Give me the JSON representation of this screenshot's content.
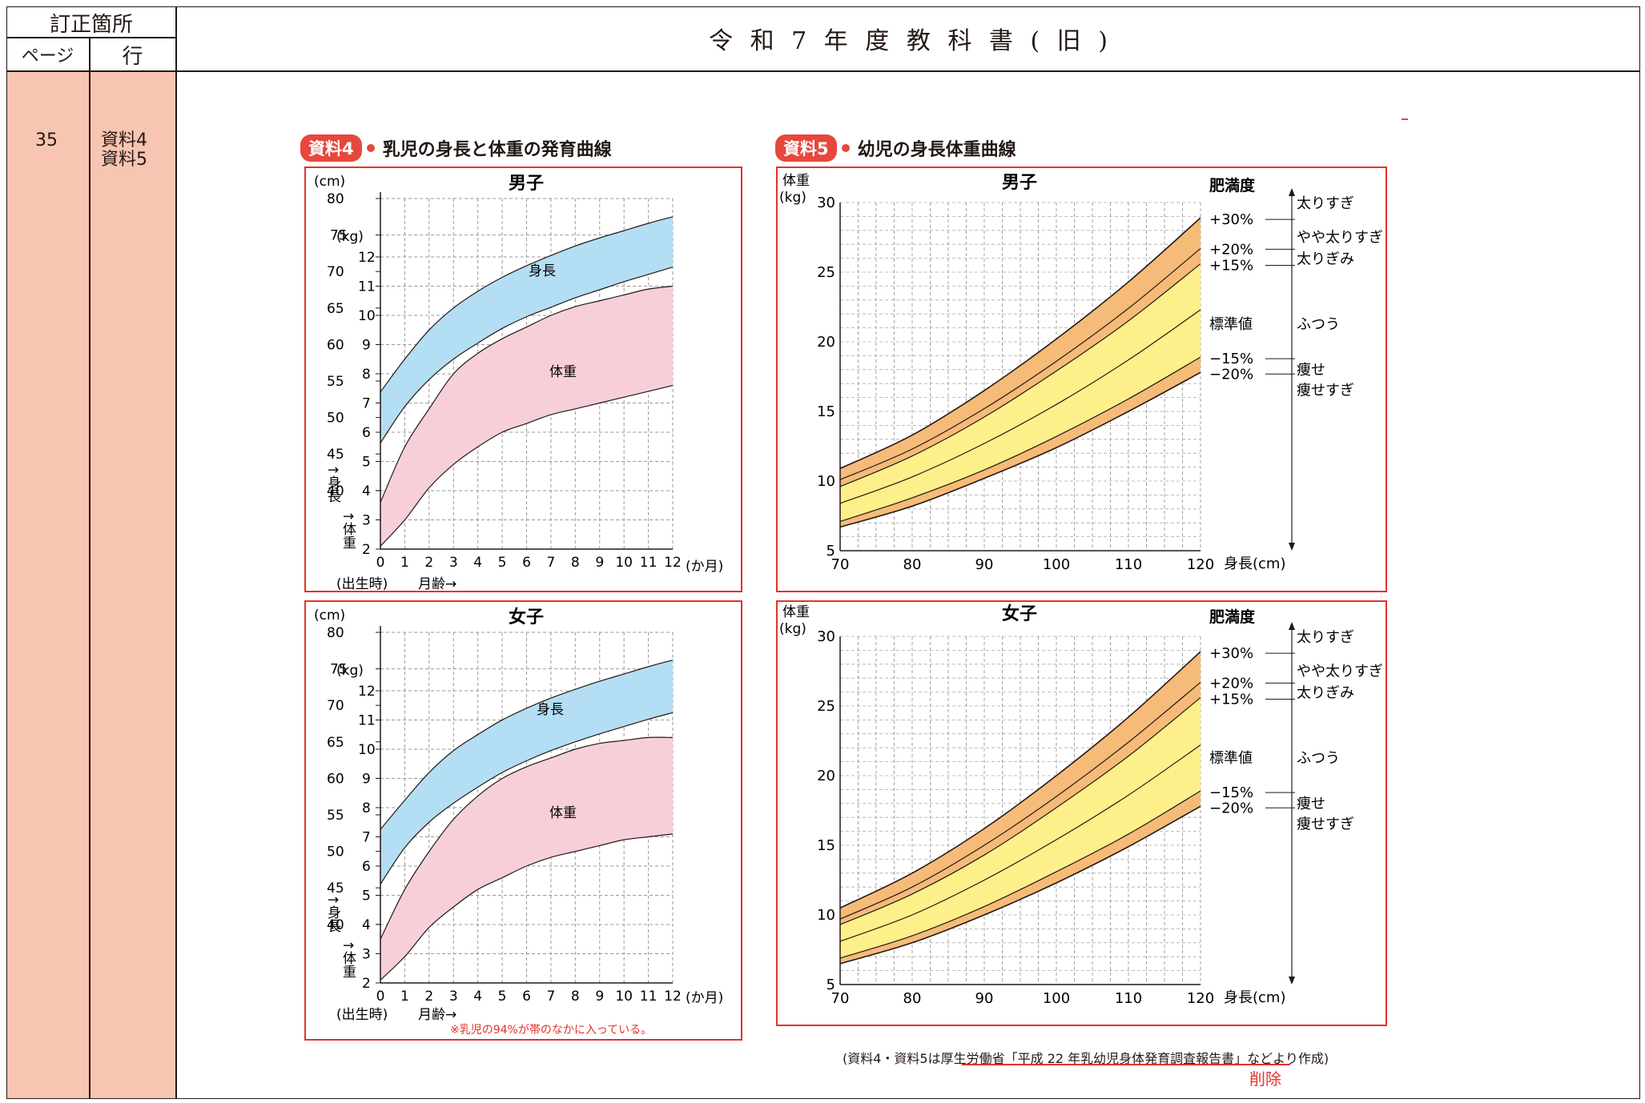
{
  "header": {
    "correction_label": "訂正箇所",
    "page_label": "ページ",
    "line_label": "行",
    "title": "令 和 7 年 度 教 科 書 ( 旧 )"
  },
  "side": {
    "page": "35",
    "line1": "資料4",
    "line2": "資料5"
  },
  "figure4": {
    "badge": "資料4",
    "caption": "乳児の身長と体重の発育曲線",
    "boy_title": "男子",
    "girl_title": "女子",
    "cm_unit": "(cm)",
    "kg_unit": "(kg)",
    "cm_ticks": [
      "80",
      "75",
      "70",
      "65",
      "60",
      "55",
      "50",
      "45",
      "40"
    ],
    "kg_ticks": [
      "12",
      "11",
      "10",
      "9",
      "8",
      "7",
      "6",
      "5",
      "4",
      "3",
      "2"
    ],
    "x_ticks": [
      "0",
      "1",
      "2",
      "3",
      "4",
      "5",
      "6",
      "7",
      "8",
      "9",
      "10",
      "11",
      "12"
    ],
    "x_unit": "(か月)",
    "x_birth": "(出生時)",
    "x_label": "月齢→",
    "height_axis": "↑身長",
    "weight_axis": "↑体重",
    "height_band": "身長",
    "weight_band": "体重",
    "note": "※乳児の94%が帯のなかに入っている。"
  },
  "figure5": {
    "badge": "資料5",
    "caption": "幼児の身長体重曲線",
    "boy_title": "男子",
    "girl_title": "女子",
    "y_label1": "体重",
    "y_label2": "(kg)",
    "y_ticks": [
      "30",
      "25",
      "20",
      "15",
      "10",
      "5"
    ],
    "x_ticks": [
      "70",
      "80",
      "90",
      "100",
      "110",
      "120"
    ],
    "x_label": "身長(cm)",
    "obesity_title": "肥満度",
    "levels": [
      "+30%",
      "+20%",
      "+15%",
      "標準値",
      "−15%",
      "−20%"
    ],
    "categories": [
      "太りすぎ",
      "やや太りすぎ",
      "太りぎみ",
      "ふつう",
      "痩せ",
      "痩せすぎ"
    ]
  },
  "footnote": {
    "text": "(資料4・資料5は厚生労働省「平成 22 年乳幼児身体発育調査報告書」などより作成)",
    "deleted": "削除"
  },
  "chart_data": [
    {
      "type": "area",
      "title": "男子",
      "xlabel": "月齢",
      "ylabel": "身長 (cm)",
      "x": [
        0,
        1,
        2,
        3,
        4,
        5,
        6,
        7,
        8,
        9,
        10,
        11,
        12
      ],
      "xlim": [
        0,
        12
      ],
      "ylim": [
        40,
        80
      ],
      "series": [
        {
          "name": "身長",
          "lower": [
            46.5,
            51.5,
            55.2,
            58.0,
            60.2,
            62.2,
            63.8,
            65.1,
            66.4,
            67.5,
            68.6,
            69.6,
            70.6
          ],
          "upper": [
            53.5,
            58.0,
            62.0,
            65.0,
            67.3,
            69.2,
            70.8,
            72.2,
            73.5,
            74.6,
            75.6,
            76.6,
            77.5
          ]
        }
      ]
    },
    {
      "type": "area",
      "title": "男子",
      "xlabel": "月齢",
      "ylabel": "体重 (kg)",
      "x": [
        0,
        1,
        2,
        3,
        4,
        5,
        6,
        7,
        8,
        9,
        10,
        11,
        12
      ],
      "xlim": [
        0,
        12
      ],
      "ylim": [
        2,
        12
      ],
      "series": [
        {
          "name": "体重",
          "lower": [
            2.1,
            3.0,
            4.1,
            4.9,
            5.5,
            6.0,
            6.3,
            6.6,
            6.8,
            7.0,
            7.2,
            7.4,
            7.6
          ],
          "upper": [
            3.6,
            5.5,
            6.8,
            8.0,
            8.7,
            9.2,
            9.6,
            10.0,
            10.3,
            10.5,
            10.7,
            10.9,
            11.0
          ]
        }
      ]
    },
    {
      "type": "area",
      "title": "女子",
      "xlabel": "月齢",
      "ylabel": "身長 (cm)",
      "x": [
        0,
        1,
        2,
        3,
        4,
        5,
        6,
        7,
        8,
        9,
        10,
        11,
        12
      ],
      "xlim": [
        0,
        12
      ],
      "ylim": [
        40,
        80
      ],
      "series": [
        {
          "name": "身長",
          "lower": [
            45.5,
            50.5,
            54.0,
            56.6,
            58.8,
            60.8,
            62.4,
            63.8,
            65.0,
            66.1,
            67.1,
            68.1,
            69.0
          ],
          "upper": [
            53.0,
            57.0,
            60.8,
            63.8,
            66.0,
            68.0,
            69.6,
            71.0,
            72.2,
            73.3,
            74.3,
            75.3,
            76.2
          ]
        }
      ]
    },
    {
      "type": "area",
      "title": "女子",
      "xlabel": "月齢",
      "ylabel": "体重 (kg)",
      "x": [
        0,
        1,
        2,
        3,
        4,
        5,
        6,
        7,
        8,
        9,
        10,
        11,
        12
      ],
      "xlim": [
        0,
        12
      ],
      "ylim": [
        2,
        12
      ],
      "series": [
        {
          "name": "体重",
          "lower": [
            2.1,
            2.9,
            3.9,
            4.6,
            5.2,
            5.6,
            6.0,
            6.3,
            6.5,
            6.7,
            6.9,
            7.0,
            7.1
          ],
          "upper": [
            3.5,
            5.2,
            6.5,
            7.6,
            8.4,
            9.0,
            9.4,
            9.7,
            10.0,
            10.2,
            10.3,
            10.4,
            10.4
          ]
        }
      ]
    },
    {
      "type": "line",
      "title": "男子",
      "xlabel": "身長(cm)",
      "ylabel": "体重(kg)",
      "x": [
        70,
        80,
        90,
        100,
        110,
        120
      ],
      "xlim": [
        70,
        120
      ],
      "ylim": [
        5,
        30
      ],
      "series": [
        {
          "name": "+30%",
          "values": [
            10.9,
            13.3,
            16.5,
            20.2,
            24.3,
            28.9
          ]
        },
        {
          "name": "+20%",
          "values": [
            10.1,
            12.3,
            15.2,
            18.6,
            22.4,
            26.7
          ]
        },
        {
          "name": "+15%",
          "values": [
            9.6,
            11.8,
            14.6,
            17.9,
            21.5,
            25.6
          ]
        },
        {
          "name": "標準値",
          "values": [
            8.4,
            10.3,
            12.7,
            15.5,
            18.7,
            22.3
          ]
        },
        {
          "name": "−15%",
          "values": [
            7.1,
            8.8,
            10.8,
            13.2,
            15.9,
            18.9
          ]
        },
        {
          "name": "−20%",
          "values": [
            6.7,
            8.2,
            10.2,
            12.4,
            15.0,
            17.8
          ]
        }
      ]
    },
    {
      "type": "line",
      "title": "女子",
      "xlabel": "身長(cm)",
      "ylabel": "体重(kg)",
      "x": [
        70,
        80,
        90,
        100,
        110,
        120
      ],
      "xlim": [
        70,
        120
      ],
      "ylim": [
        5,
        30
      ],
      "series": [
        {
          "name": "+30%",
          "values": [
            10.5,
            13.0,
            16.2,
            20.0,
            24.2,
            28.9
          ]
        },
        {
          "name": "+20%",
          "values": [
            9.7,
            12.0,
            15.0,
            18.5,
            22.4,
            26.7
          ]
        },
        {
          "name": "+15%",
          "values": [
            9.3,
            11.5,
            14.3,
            17.7,
            21.4,
            25.6
          ]
        },
        {
          "name": "標準値",
          "values": [
            8.1,
            10.0,
            12.5,
            15.4,
            18.6,
            22.2
          ]
        },
        {
          "name": "−15%",
          "values": [
            6.9,
            8.5,
            10.6,
            13.1,
            15.8,
            18.9
          ]
        },
        {
          "name": "−20%",
          "values": [
            6.5,
            8.0,
            10.0,
            12.3,
            14.9,
            17.8
          ]
        }
      ]
    }
  ]
}
